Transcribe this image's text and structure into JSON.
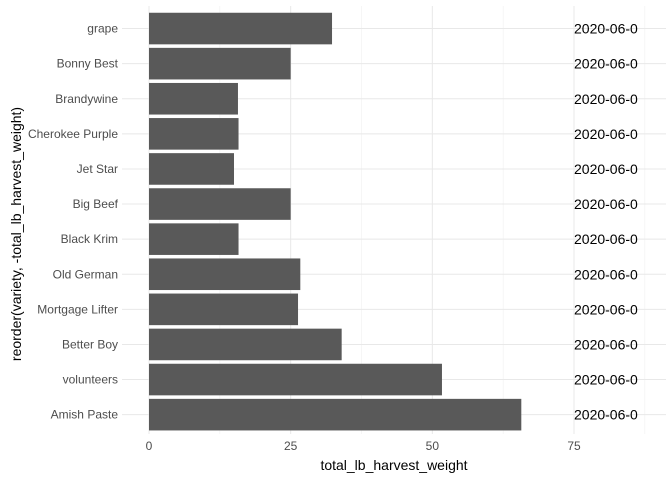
{
  "chart_data": {
    "type": "bar",
    "orientation": "horizontal",
    "xlabel": "total_lb_harvest_weight",
    "ylabel": "reorder(variety, -total_lb_harvest_weight)",
    "xlim": [
      0,
      90
    ],
    "x_ticks": [
      0,
      25,
      50,
      75
    ],
    "grid": true,
    "categories": [
      "grape",
      "Bonny Best",
      "Brandywine",
      "Cherokee Purple",
      "Jet Star",
      "Big Beef",
      "Black Krim",
      "Old German",
      "Mortgage Lifter",
      "Better Boy",
      "volunteers",
      "Amish Paste"
    ],
    "values": [
      32.3,
      25.0,
      15.7,
      15.8,
      15.0,
      25.0,
      15.8,
      26.7,
      26.3,
      34.0,
      51.7,
      65.7
    ],
    "bar_color": "#595959",
    "overplotted_text_x": 75,
    "overplotted_text": [
      "2020-06-0",
      "2020-06-0",
      "2020-06-0",
      "2020-06-0",
      "2020-06-0",
      "2020-06-0",
      "2020-06-0",
      "2020-06-0",
      "2020-06-0",
      "2020-06-0",
      "2020-06-0",
      "2020-06-0"
    ]
  }
}
